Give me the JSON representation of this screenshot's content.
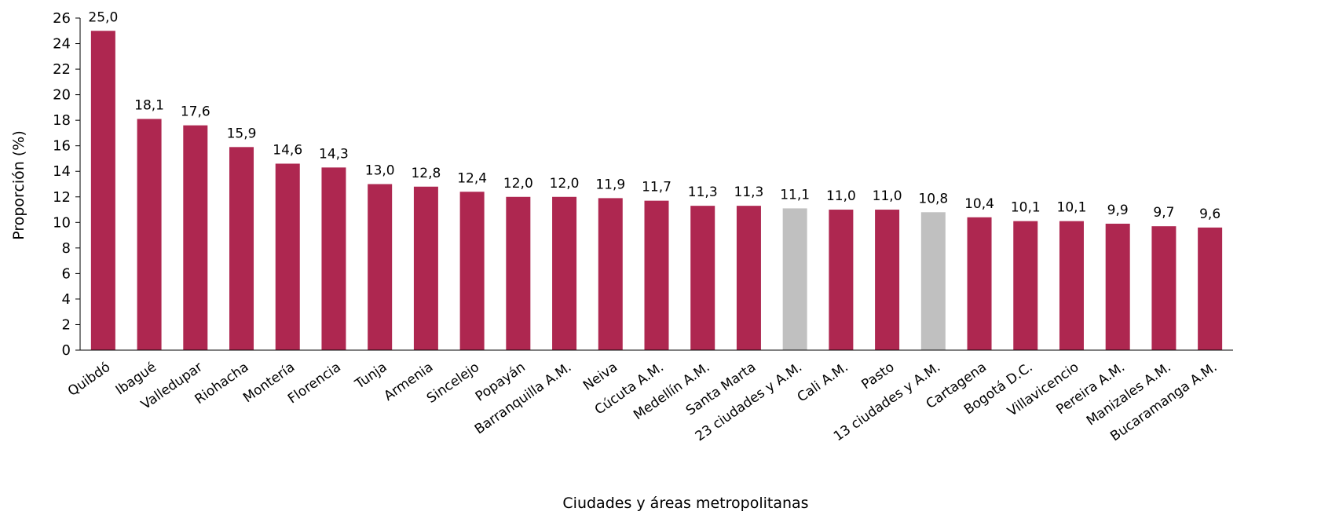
{
  "chart_data": {
    "type": "bar",
    "xlabel": "Ciudades y áreas metropolitanas",
    "ylabel": "Proporción (%)",
    "ylim": [
      0,
      26
    ],
    "yticks": [
      "0",
      "2",
      "4",
      "6",
      "8",
      "10",
      "12",
      "14",
      "16",
      "18",
      "20",
      "22",
      "24",
      "26"
    ],
    "categories": [
      "Quibdó",
      "Ibagué",
      "Valledupar",
      "Riohacha",
      "Montería",
      "Florencia",
      "Tunja",
      "Armenia",
      "Sincelejo",
      "Popayán",
      "Barranquilla A.M.",
      "Neiva",
      "Cúcuta A.M.",
      "Medellín A.M.",
      "Santa Marta",
      "23 ciudades y A.M.",
      "Cali A.M.",
      "Pasto",
      "13 ciudades y A.M.",
      "Cartagena",
      "Bogotá D.C.",
      "Villavicencio",
      "Pereira A.M.",
      "Manizales A.M.",
      "Bucaramanga A.M."
    ],
    "values": [
      25.0,
      18.1,
      17.6,
      15.9,
      14.6,
      14.3,
      13.0,
      12.8,
      12.4,
      12.0,
      12.0,
      11.9,
      11.7,
      11.3,
      11.3,
      11.1,
      11.0,
      11.0,
      10.8,
      10.4,
      10.1,
      10.1,
      9.9,
      9.7,
      9.6
    ],
    "data_labels": [
      "25,0",
      "18,1",
      "17,6",
      "15,9",
      "14,6",
      "14,3",
      "13,0",
      "12,8",
      "12,4",
      "12,0",
      "12,0",
      "11,9",
      "11,7",
      "11,3",
      "11,3",
      "11,1",
      "11,0",
      "11,0",
      "10,8",
      "10,4",
      "10,1",
      "10,1",
      "9,9",
      "9,7",
      "9,6"
    ],
    "highlighted": [
      "23 ciudades y A.M.",
      "13 ciudades y A.M."
    ],
    "colors": {
      "bar": "#AE2750",
      "highlight": "#C0C0C0",
      "axis": "#000000"
    },
    "grid": false,
    "legend": "none"
  }
}
